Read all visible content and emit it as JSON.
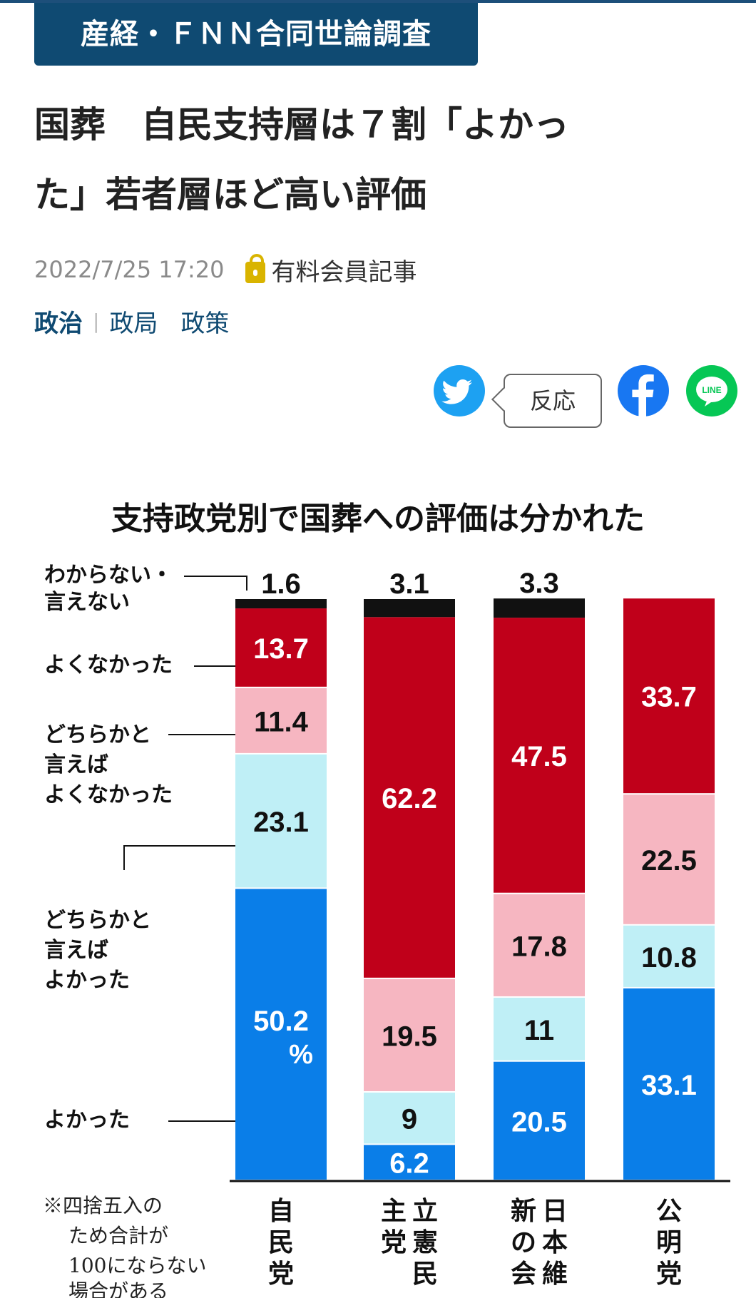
{
  "header": {
    "badge": "産経・ＦＮＮ合同世論調査",
    "title_line1": "国葬　自民支持層は７割「よかっ",
    "title_line2": "た」若者層ほど高い評価"
  },
  "meta": {
    "date": "2022/7/25 17:20",
    "paid_label": "有料会員記事"
  },
  "tags": {
    "main": "政治",
    "sub": [
      "政局",
      "政策"
    ]
  },
  "social": {
    "twitter": "twitter-icon",
    "react_label": "反応",
    "facebook": "facebook-icon",
    "line": "LINE"
  },
  "colors": {
    "accent": "#0f4a72",
    "good": "#0a7ee8",
    "rather_good": "#bfeff6",
    "rather_bad": "#f6b6c1",
    "bad": "#c0001a",
    "unknown": "#111111"
  },
  "chart_data": {
    "type": "bar",
    "stacked": true,
    "title": "支持政党別で国葬への評価は分かれた",
    "categories": [
      "自民党",
      "立憲民主党",
      "日本維新の会",
      "公明党"
    ],
    "series": [
      {
        "name": "よかった",
        "values": [
          50.2,
          6.2,
          20.5,
          33.1
        ]
      },
      {
        "name": "どちらかと言えばよかった",
        "values": [
          23.1,
          9,
          11,
          10.8
        ]
      },
      {
        "name": "どちらかと言えばよくなかった",
        "values": [
          11.4,
          19.5,
          17.8,
          22.5
        ]
      },
      {
        "name": "よくなかった",
        "values": [
          13.7,
          62.2,
          47.5,
          33.7
        ]
      },
      {
        "name": "わからない・言えない",
        "values": [
          1.6,
          3.1,
          3.3,
          null
        ]
      }
    ],
    "unit_label": "%",
    "note": "※四捨五入のため合計が100にならない場合がある"
  }
}
